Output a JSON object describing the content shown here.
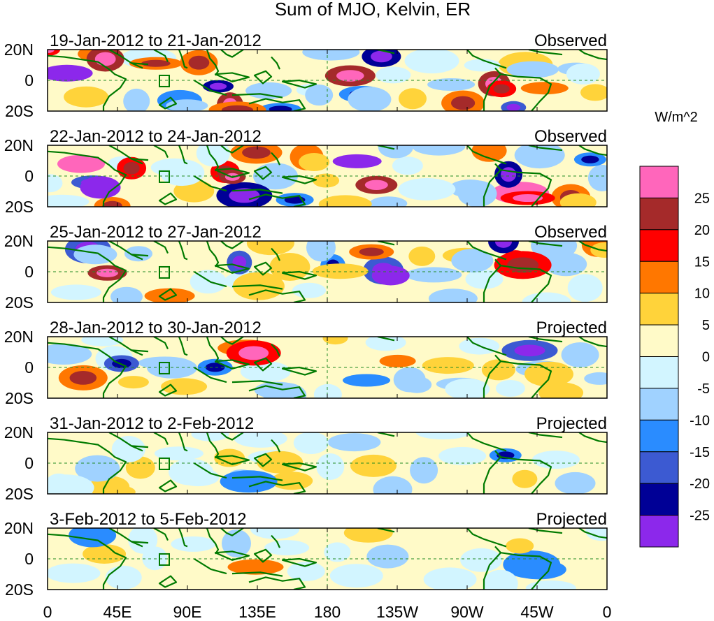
{
  "title": "Sum of MJO, Kelvin, ER",
  "units_label": "W/m^2",
  "latitude_labels": [
    "20N",
    "0",
    "20S"
  ],
  "longitude_labels": [
    "0",
    "45E",
    "90E",
    "135E",
    "180",
    "135W",
    "90W",
    "45W",
    "0"
  ],
  "panels": [
    {
      "period": "19-Jan-2012 to 21-Jan-2012",
      "status": "Observed",
      "intensity": 1.0
    },
    {
      "period": "22-Jan-2012 to 24-Jan-2012",
      "status": "Observed",
      "intensity": 1.0
    },
    {
      "period": "25-Jan-2012 to 27-Jan-2012",
      "status": "Observed",
      "intensity": 0.9
    },
    {
      "period": "28-Jan-2012 to 30-Jan-2012",
      "status": "Projected",
      "intensity": 0.7
    },
    {
      "period": "31-Jan-2012 to 2-Feb-2012",
      "status": "Projected",
      "intensity": 0.5
    },
    {
      "period": "3-Feb-2012 to 5-Feb-2012",
      "status": "Projected",
      "intensity": 0.35
    }
  ],
  "colorbar": {
    "tick_labels": [
      "25",
      "20",
      "15",
      "10",
      "5",
      "0",
      "-5",
      "-10",
      "-15",
      "-20",
      "-25"
    ],
    "colors": [
      "#ff66bb",
      "#a52a2a",
      "#ff0000",
      "#ff7700",
      "#ffd33a",
      "#fffac8",
      "#d2f5ff",
      "#a0d2ff",
      "#2a8cff",
      "#3c5ad2",
      "#000096",
      "#8c28eb"
    ]
  },
  "map_colors": {
    "coast": "#007a00",
    "grid": "#228b22",
    "frame": "#000000"
  }
}
